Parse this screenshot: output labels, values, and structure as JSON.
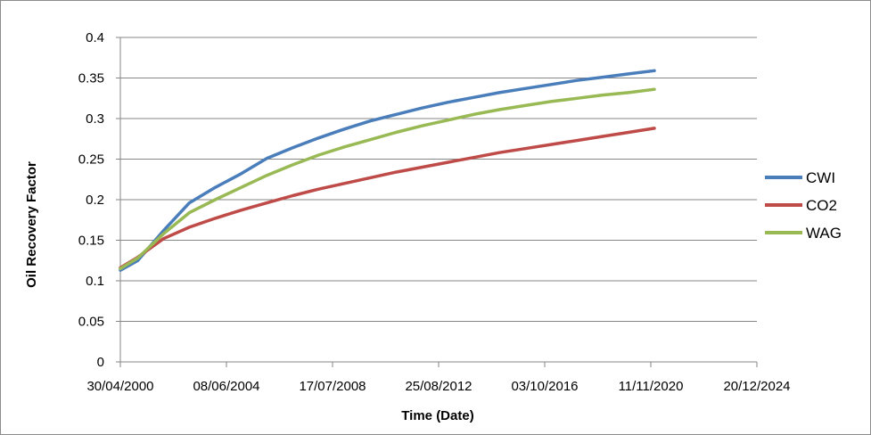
{
  "chart_data": {
    "type": "line",
    "xlabel": "Time (Date)",
    "ylabel": "Oil Recovery Factor",
    "x_axis_type": "date",
    "xlim": [
      "30/04/2000",
      "20/12/2024"
    ],
    "ylim": [
      0,
      0.4
    ],
    "x_ticks": [
      "30/04/2000",
      "08/06/2004",
      "17/07/2008",
      "25/08/2012",
      "03/10/2016",
      "11/11/2020",
      "20/12/2024"
    ],
    "y_ticks": [
      "0",
      "0.05",
      "0.1",
      "0.15",
      "0.2",
      "0.25",
      "0.3",
      "0.35",
      "0.4"
    ],
    "grid": "horizontal",
    "legend_position": "right",
    "x": [
      "30/04/2000",
      "01/01/2001",
      "01/01/2002",
      "01/01/2003",
      "01/01/2004",
      "01/01/2005",
      "01/01/2006",
      "01/01/2007",
      "01/01/2008",
      "01/01/2009",
      "01/01/2010",
      "01/01/2011",
      "01/01/2012",
      "01/01/2013",
      "01/01/2014",
      "01/01/2015",
      "01/01/2016",
      "01/01/2017",
      "01/01/2018",
      "01/01/2019",
      "01/01/2020",
      "01/01/2021"
    ],
    "series": [
      {
        "name": "CWI",
        "color": "#4a7ebb",
        "values": [
          0.113,
          0.125,
          0.162,
          0.196,
          0.215,
          0.232,
          0.251,
          0.264,
          0.276,
          0.287,
          0.297,
          0.305,
          0.313,
          0.32,
          0.326,
          0.332,
          0.337,
          0.342,
          0.347,
          0.351,
          0.355,
          0.359
        ]
      },
      {
        "name": "CO2",
        "color": "#be4b48",
        "values": [
          0.116,
          0.129,
          0.152,
          0.166,
          0.177,
          0.187,
          0.196,
          0.205,
          0.213,
          0.22,
          0.227,
          0.234,
          0.24,
          0.246,
          0.252,
          0.258,
          0.263,
          0.268,
          0.273,
          0.278,
          0.283,
          0.288
        ]
      },
      {
        "name": "WAG",
        "color": "#98b954",
        "values": [
          0.115,
          0.128,
          0.158,
          0.184,
          0.2,
          0.215,
          0.23,
          0.243,
          0.255,
          0.265,
          0.274,
          0.283,
          0.291,
          0.298,
          0.305,
          0.311,
          0.316,
          0.321,
          0.325,
          0.329,
          0.332,
          0.336
        ]
      }
    ]
  }
}
